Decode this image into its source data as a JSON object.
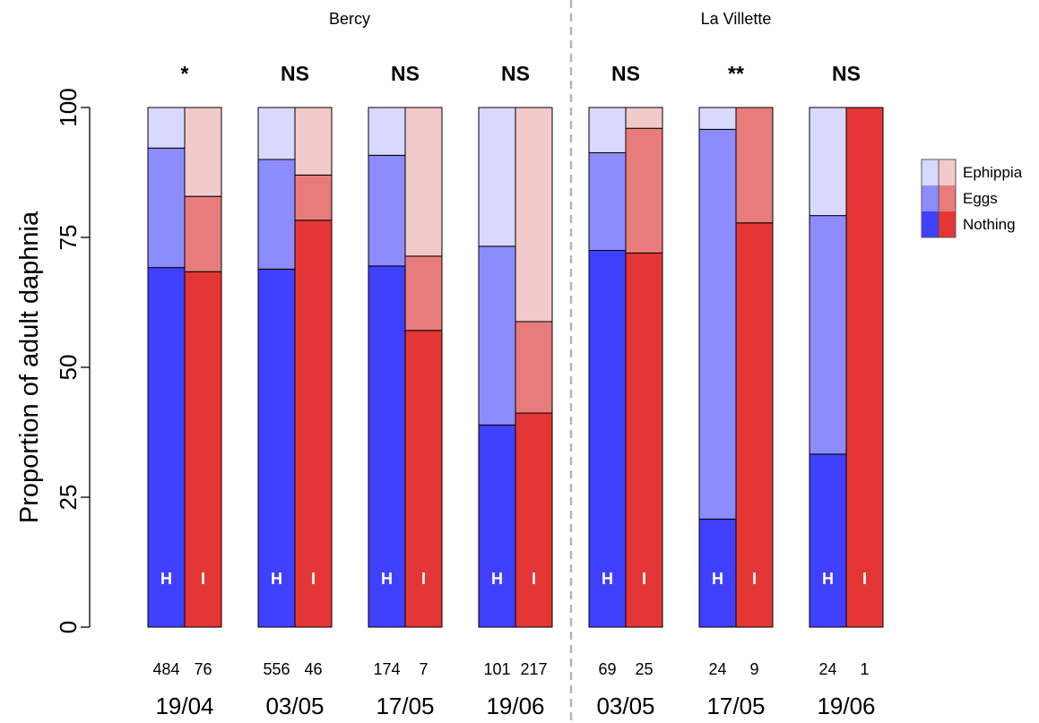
{
  "chart_data": {
    "type": "bar",
    "stacked": true,
    "percent": true,
    "ylabel": "Proportion of adult daphnia",
    "ylim": [
      0,
      100
    ],
    "yticks": [
      0,
      25,
      50,
      75,
      100
    ],
    "sites": [
      {
        "name": "Bercy",
        "dates": [
          0,
          1,
          2,
          3
        ]
      },
      {
        "name": "La Villette",
        "dates": [
          4,
          5,
          6
        ]
      }
    ],
    "legend": {
      "position": "right",
      "entries": [
        "Ephippia",
        "Eggs",
        "Nothing"
      ]
    },
    "colors": {
      "H": {
        "Nothing": "#4040ff",
        "Eggs": "#8c8cff",
        "Ephippia": "#d9d9ff"
      },
      "I": {
        "Nothing": "#e53636",
        "Eggs": "#e87c7c",
        "Ephippia": "#f2caca"
      }
    },
    "groups": [
      {
        "date": "19/04",
        "significance": "*",
        "bars": [
          {
            "label": "H",
            "n": "484",
            "nothing": 69.2,
            "eggs": 23.0,
            "ephippia": 7.8
          },
          {
            "label": "I",
            "n": "76",
            "nothing": 68.4,
            "eggs": 14.5,
            "ephippia": 17.1
          }
        ]
      },
      {
        "date": "03/05",
        "significance": "NS",
        "bars": [
          {
            "label": "H",
            "n": "556",
            "nothing": 68.9,
            "eggs": 21.1,
            "ephippia": 10.0
          },
          {
            "label": "I",
            "n": "46",
            "nothing": 78.3,
            "eggs": 8.7,
            "ephippia": 13.0
          }
        ]
      },
      {
        "date": "17/05",
        "significance": "NS",
        "bars": [
          {
            "label": "H",
            "n": "174",
            "nothing": 69.5,
            "eggs": 21.3,
            "ephippia": 9.2
          },
          {
            "label": "I",
            "n": "7",
            "nothing": 57.1,
            "eggs": 14.3,
            "ephippia": 28.6
          }
        ]
      },
      {
        "date": "19/06",
        "significance": "NS",
        "bars": [
          {
            "label": "H",
            "n": "101",
            "nothing": 38.9,
            "eggs": 34.4,
            "ephippia": 26.7
          },
          {
            "label": "I",
            "n": "217",
            "nothing": 41.2,
            "eggs": 17.6,
            "ephippia": 41.2
          }
        ]
      },
      {
        "date": "03/05",
        "significance": "NS",
        "bars": [
          {
            "label": "H",
            "n": "69",
            "nothing": 72.5,
            "eggs": 18.8,
            "ephippia": 8.7
          },
          {
            "label": "I",
            "n": "25",
            "nothing": 72.0,
            "eggs": 24.0,
            "ephippia": 4.0
          }
        ]
      },
      {
        "date": "17/05",
        "significance": "**",
        "bars": [
          {
            "label": "H",
            "n": "24",
            "nothing": 20.8,
            "eggs": 75.0,
            "ephippia": 4.2
          },
          {
            "label": "I",
            "n": "9",
            "nothing": 77.8,
            "eggs": 22.2,
            "ephippia": 0
          }
        ]
      },
      {
        "date": "19/06",
        "significance": "NS",
        "bars": [
          {
            "label": "H",
            "n": "24",
            "nothing": 33.3,
            "eggs": 45.9,
            "ephippia": 20.8
          },
          {
            "label": "I",
            "n": "1",
            "nothing": 100,
            "eggs": 0,
            "ephippia": 0
          }
        ]
      }
    ]
  }
}
